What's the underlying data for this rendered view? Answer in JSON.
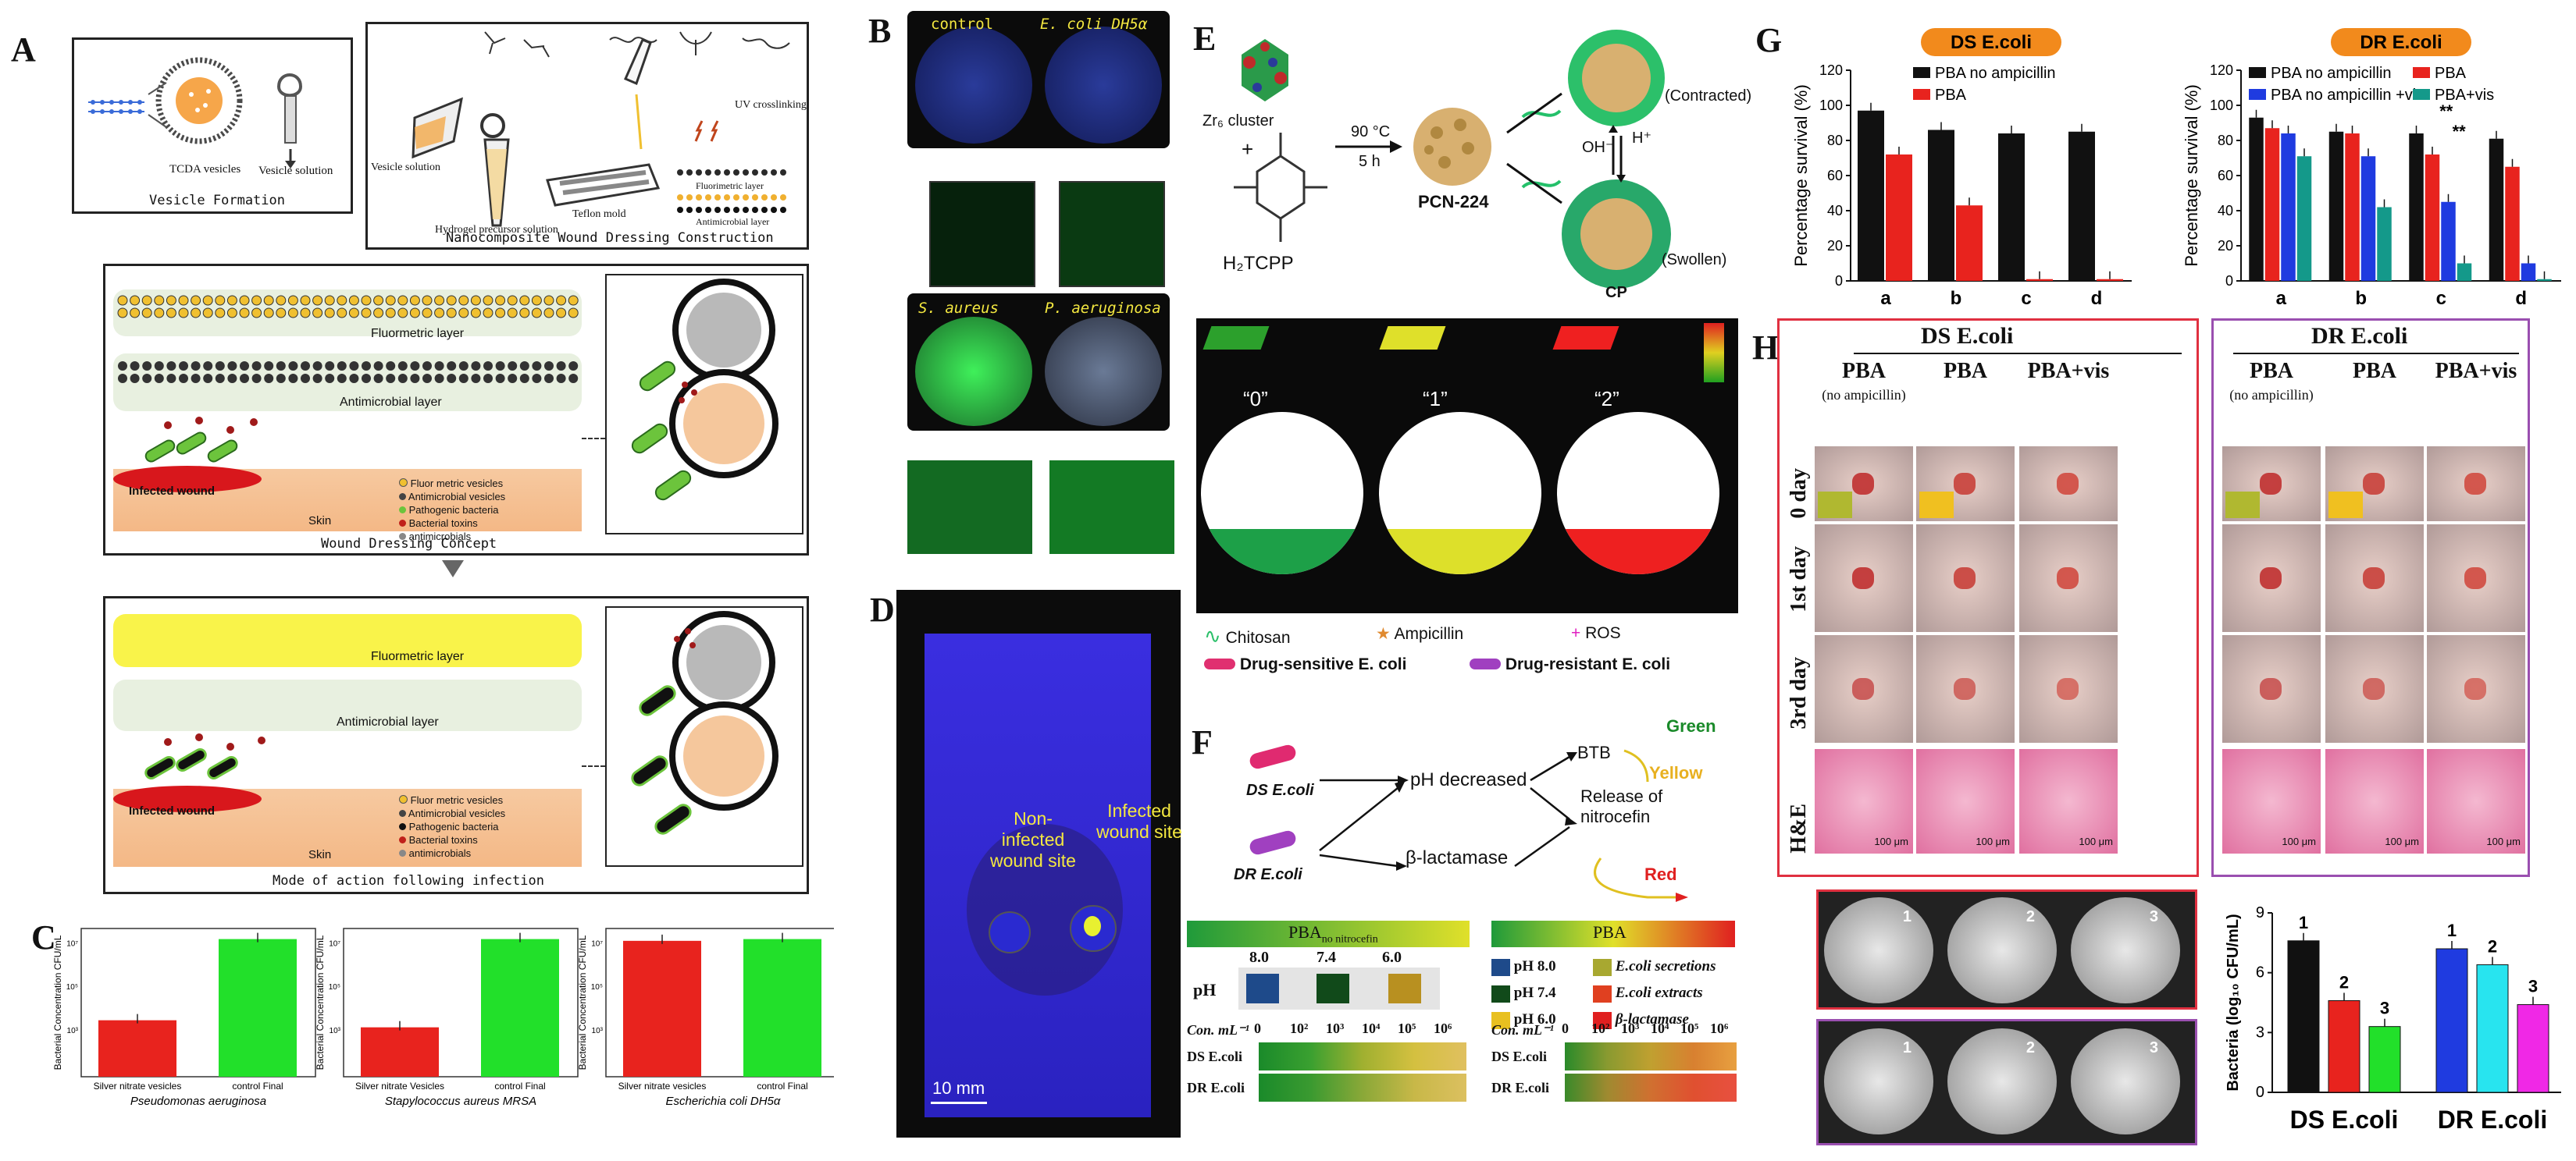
{
  "colors": {
    "red": "#e8231e",
    "green": "#22e02a",
    "black": "#111111",
    "blue": "#1f3be0",
    "teal": "#14998a",
    "cyan": "#28e4ef",
    "magenta": "#f028e6",
    "orange": "#f28a1c",
    "crimson": "#d8323c",
    "purple": "#9a4fb0"
  },
  "panelA": {
    "label": "A",
    "vesicle_formation": "Vesicle Formation",
    "tcda_vesicles": "TCDA vesicles",
    "vesicle_solution": "Vesicle solution",
    "vesicle_solution2": "Vesicle solution",
    "hydrogel_precursor": "Hydrogel precursor solution",
    "teflon_mold": "Teflon mold",
    "uv_crosslinking": "UV crosslinking",
    "fluorimetric_layer_small": "Fluorimetric layer",
    "antimicrobial_layer_small": "Antimicrobial layer",
    "nano_construction": "Nanocomposite Wound Dressing Construction",
    "concept": {
      "fluor_layer": "Fluormetric layer",
      "antimicrobial_layer": "Antimicrobial layer",
      "infected_wound": "Infected wound",
      "skin": "Skin",
      "caption": "Wound Dressing Concept",
      "legend": [
        "Fluor metric vesicles",
        "Antimicrobial vesicles",
        "Pathogenic bacteria",
        "Bacterial toxins",
        "antimicrobials"
      ]
    },
    "mode": {
      "fluor_layer": "Fluormetric layer",
      "antimicrobial_layer": "Antimicrobial layer",
      "infected_wound": "Infected wound",
      "skin": "Skin",
      "caption": "Mode of action following infection",
      "legend": [
        "Fluor metric vesicles",
        "Antimicrobial vesicles",
        "Pathogenic bacteria",
        "Bacterial toxins",
        "antimicrobials"
      ]
    }
  },
  "panelB": {
    "label": "B",
    "top_left": "control",
    "top_right": "E. coli DH5α",
    "bottom_left": "S. aureus",
    "bottom_right": "P. aeruginosa"
  },
  "panelD": {
    "label": "D",
    "non_infected": "Non-infected wound site",
    "infected": "Infected wound site",
    "scale": "10 mm"
  },
  "panelC": {
    "label": "C",
    "ylabel": "Bacterial Concentration CFU/mL",
    "charts": [
      {
        "xtitle": "Pseudomonas aeruginosa",
        "cats": [
          "Silver nitrate vesicles",
          "control Final"
        ],
        "values": [
          1.6,
          3.9
        ],
        "ticks": [
          "10³",
          "10⁵",
          "10⁷"
        ]
      },
      {
        "xtitle": "Stapylococcus aureus MRSA",
        "cats": [
          "Silver nitrate Vesicles",
          "control Final"
        ],
        "values": [
          1.4,
          3.9
        ],
        "ticks": [
          "10³",
          "10⁵",
          "10⁷"
        ]
      },
      {
        "xtitle": "Escherichia coli  DH5α",
        "cats": [
          "Silver nitrate vesicles",
          "control Final"
        ],
        "values": [
          3.85,
          3.9
        ],
        "ticks": [
          "10³",
          "10⁵",
          "10⁷"
        ]
      }
    ]
  },
  "panelE": {
    "label": "E",
    "zr6": "Zr₆ cluster",
    "plus": "+",
    "h2tcpp": "H₂TCPP",
    "condition_temp": "90 °C",
    "condition_time": "5 h",
    "pcn": "PCN-224",
    "contracted": "(Contracted)",
    "swollen": "(Swollen)",
    "oh": "OH⁻",
    "h": "H⁺",
    "cp": "CP",
    "states": [
      "“0”",
      "“1”",
      "“2”"
    ],
    "legend": {
      "chitosan": "Chitosan",
      "ampicillin": "Ampicillin",
      "ros": "ROS",
      "ds": "Drug-sensitive E. coli",
      "dr": "Drug-resistant E. coli"
    }
  },
  "panelF": {
    "label": "F",
    "ds": "DS E.coli",
    "dr": "DR E.coli",
    "ph_decreased": "pH decreased",
    "beta": "β-lactamase",
    "btb": "BTB",
    "release": "Release of nitrocefin",
    "green": "Green",
    "yellow": "Yellow",
    "red": "Red",
    "left_header": "PBA",
    "left_header_sub": "no nitrocefin",
    "ph_label": "pH",
    "ph_values": [
      "8.0",
      "7.4",
      "6.0"
    ],
    "con_label": "Con. mL⁻¹",
    "conc": [
      "0",
      "10²",
      "10³",
      "10⁴",
      "10⁵",
      "10⁶"
    ],
    "rows": [
      "DS E.coli",
      "DR E.coli"
    ],
    "c_label": "C",
    "right_header": "PBA",
    "right_legend": [
      "pH 8.0",
      "pH 7.4",
      "pH 6.0"
    ],
    "right_legend2": [
      "E.coli secretions",
      "E.coli extracts",
      "β-lactamase"
    ]
  },
  "panelG": {
    "label": "G",
    "ds_title": "DS E.coli",
    "dr_title": "DR E.coli",
    "ylabel": "Percentage survival (%)",
    "yticks": [
      "0",
      "20",
      "40",
      "60",
      "80",
      "100",
      "120"
    ],
    "cats": [
      "a",
      "b",
      "c",
      "d"
    ],
    "ds_legend": [
      "PBA no ampicillin",
      "PBA"
    ],
    "dr_legend": [
      "PBA no ampicillin",
      "PBA",
      "PBA no ampicillin +vis",
      "PBA+vis"
    ],
    "sig": "**"
  },
  "panelH": {
    "label": "H",
    "ds_title": "DS E.coli",
    "dr_title": "DR E.coli",
    "cols": [
      "PBA",
      "PBA",
      "PBA+vis"
    ],
    "col_sub": "(no ampicillin)",
    "rows": [
      "0 day",
      "1st day",
      "3rd day",
      "H&E"
    ],
    "scale": "100 μm",
    "plate_nums": [
      "1",
      "2",
      "3"
    ],
    "bar_ylabel": "Bacteria (log₁₀ CFU/mL)",
    "bar_yticks": [
      "0",
      "3",
      "6",
      "9"
    ],
    "bar_groups": [
      "DS E.coli",
      "DR E.coli"
    ],
    "bar_labels": [
      "1",
      "2",
      "3",
      "1",
      "2",
      "3"
    ]
  },
  "chart_data": [
    {
      "type": "bar",
      "title": "",
      "categories": [
        "Silver nitrate vesicles",
        "control Final"
      ],
      "values": [
        100,
        10000000
      ],
      "ylabel": "Bacterial Concentration CFU/mL",
      "xlabel": "Pseudomonas aeruginosa",
      "yscale": "log"
    },
    {
      "type": "bar",
      "title": "",
      "categories": [
        "Silver nitrate Vesicles",
        "control Final"
      ],
      "values": [
        50,
        10000000
      ],
      "ylabel": "Bacterial Concentration CFU/mL",
      "xlabel": "Stapylococcus aureus MRSA",
      "yscale": "log"
    },
    {
      "type": "bar",
      "title": "",
      "categories": [
        "Silver nitrate vesicles",
        "control Final"
      ],
      "values": [
        9000000,
        10000000
      ],
      "ylabel": "Bacterial Concentration CFU/mL",
      "xlabel": "Escherichia coli DH5α",
      "yscale": "log"
    },
    {
      "type": "bar",
      "title": "DS E.coli",
      "categories": [
        "a",
        "b",
        "c",
        "d"
      ],
      "ylabel": "Percentage survival (%)",
      "ylim": [
        0,
        120
      ],
      "series": [
        {
          "name": "PBA no ampicillin",
          "values": [
            97,
            86,
            84,
            85
          ]
        },
        {
          "name": "PBA",
          "values": [
            72,
            43,
            1,
            1
          ]
        }
      ]
    },
    {
      "type": "bar",
      "title": "DR E.coli",
      "categories": [
        "a",
        "b",
        "c",
        "d"
      ],
      "ylabel": "Percentage survival (%)",
      "ylim": [
        0,
        120
      ],
      "series": [
        {
          "name": "PBA no ampicillin",
          "values": [
            93,
            85,
            84,
            81
          ]
        },
        {
          "name": "PBA",
          "values": [
            87,
            84,
            72,
            65
          ]
        },
        {
          "name": "PBA no ampicillin +vis",
          "values": [
            84,
            71,
            45,
            10
          ]
        },
        {
          "name": "PBA+vis",
          "values": [
            71,
            42,
            10,
            1
          ]
        }
      ]
    },
    {
      "type": "bar",
      "title": "",
      "categories": [
        "DS E.coli",
        "DR E.coli"
      ],
      "ylabel": "Bacteria (log10 CFU/mL)",
      "ylim": [
        0,
        9
      ],
      "series": [
        {
          "name": "1",
          "values": [
            7.6,
            7.2
          ]
        },
        {
          "name": "2",
          "values": [
            4.6,
            6.4
          ]
        },
        {
          "name": "3",
          "values": [
            3.3,
            4.4
          ]
        }
      ]
    }
  ]
}
